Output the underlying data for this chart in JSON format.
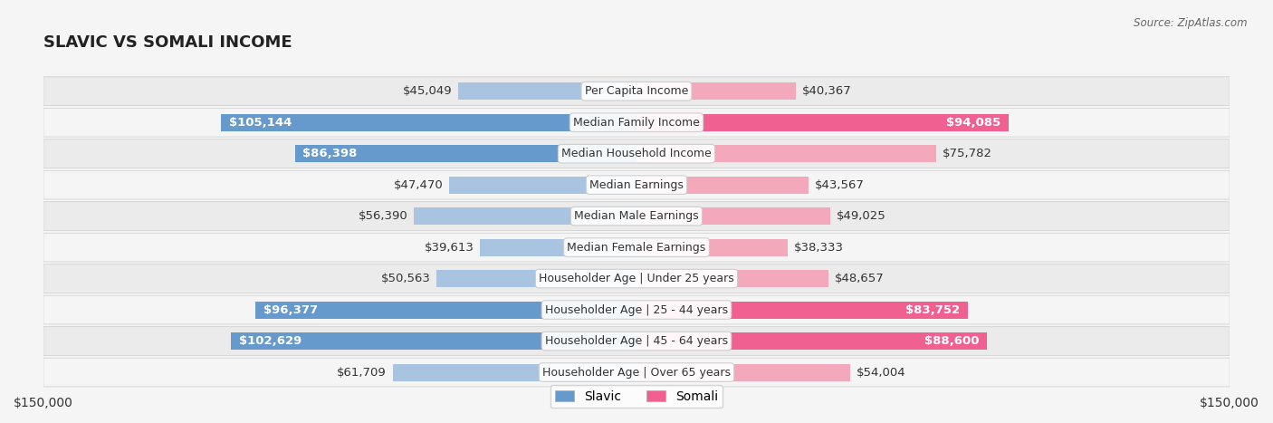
{
  "title": "SLAVIC VS SOMALI INCOME",
  "source": "Source: ZipAtlas.com",
  "categories": [
    "Per Capita Income",
    "Median Family Income",
    "Median Household Income",
    "Median Earnings",
    "Median Male Earnings",
    "Median Female Earnings",
    "Householder Age | Under 25 years",
    "Householder Age | 25 - 44 years",
    "Householder Age | 45 - 64 years",
    "Householder Age | Over 65 years"
  ],
  "slavic_values": [
    45049,
    105144,
    86398,
    47470,
    56390,
    39613,
    50563,
    96377,
    102629,
    61709
  ],
  "somali_values": [
    40367,
    94085,
    75782,
    43567,
    49025,
    38333,
    48657,
    83752,
    88600,
    54004
  ],
  "slavic_labels": [
    "$45,049",
    "$105,144",
    "$86,398",
    "$47,470",
    "$56,390",
    "$39,613",
    "$50,563",
    "$96,377",
    "$102,629",
    "$61,709"
  ],
  "somali_labels": [
    "$40,367",
    "$94,085",
    "$75,782",
    "$43,567",
    "$49,025",
    "$38,333",
    "$48,657",
    "$83,752",
    "$88,600",
    "$54,004"
  ],
  "slavic_color_light": "#a8c4e0",
  "slavic_color_dark": "#6699cc",
  "somali_color_light": "#f4a8bc",
  "somali_color_dark": "#f06090",
  "max_value": 150000,
  "bar_height": 0.55,
  "bg_color": "#f5f5f5",
  "row_bg_even": "#ebebeb",
  "row_bg_odd": "#f5f5f5",
  "label_fontsize": 9.5,
  "category_fontsize": 9.0,
  "title_fontsize": 13
}
